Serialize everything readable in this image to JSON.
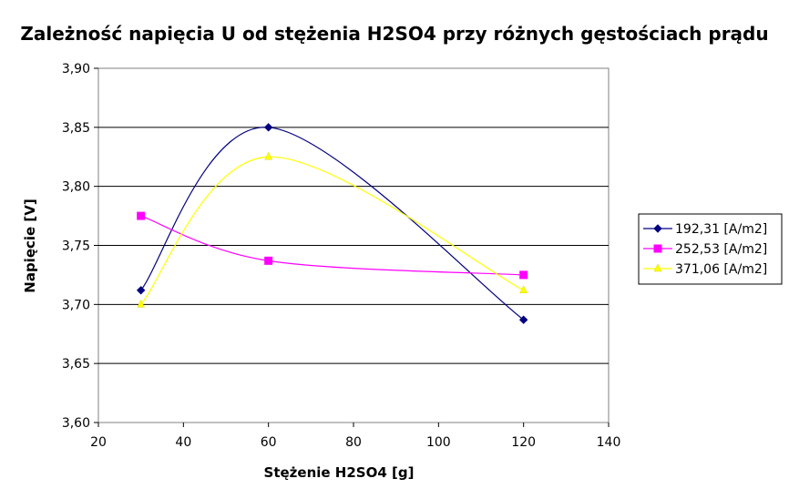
{
  "chart_data": {
    "type": "line",
    "title": "Zależność napięcia U od stężenia H2SO4 przy różnych gęstościach prądu",
    "xlabel": "Stężenie H2SO4 [g]",
    "ylabel": "Napięcie [V]",
    "xlim": [
      20,
      140
    ],
    "ylim": [
      3.6,
      3.9
    ],
    "xticks": [
      "20",
      "40",
      "60",
      "80",
      "100",
      "120",
      "140"
    ],
    "yticks": [
      "3,60",
      "3,65",
      "3,70",
      "3,75",
      "3,80",
      "3,85",
      "3,90"
    ],
    "grid": "horizontal",
    "legend_position": "right",
    "series": [
      {
        "name": "192,31 [A/m2]",
        "color": "#000080",
        "marker": "diamond",
        "x": [
          30,
          60,
          120
        ],
        "y": [
          3.712,
          3.85,
          3.687
        ]
      },
      {
        "name": "252,53 [A/m2]",
        "color": "#ff00ff",
        "marker": "square",
        "x": [
          30,
          60,
          120
        ],
        "y": [
          3.775,
          3.737,
          3.725
        ]
      },
      {
        "name": "371,06 [A/m2]",
        "color": "#ffff00",
        "marker": "triangle",
        "x": [
          30,
          60,
          120
        ],
        "y": [
          3.7,
          3.825,
          3.712
        ]
      }
    ]
  }
}
